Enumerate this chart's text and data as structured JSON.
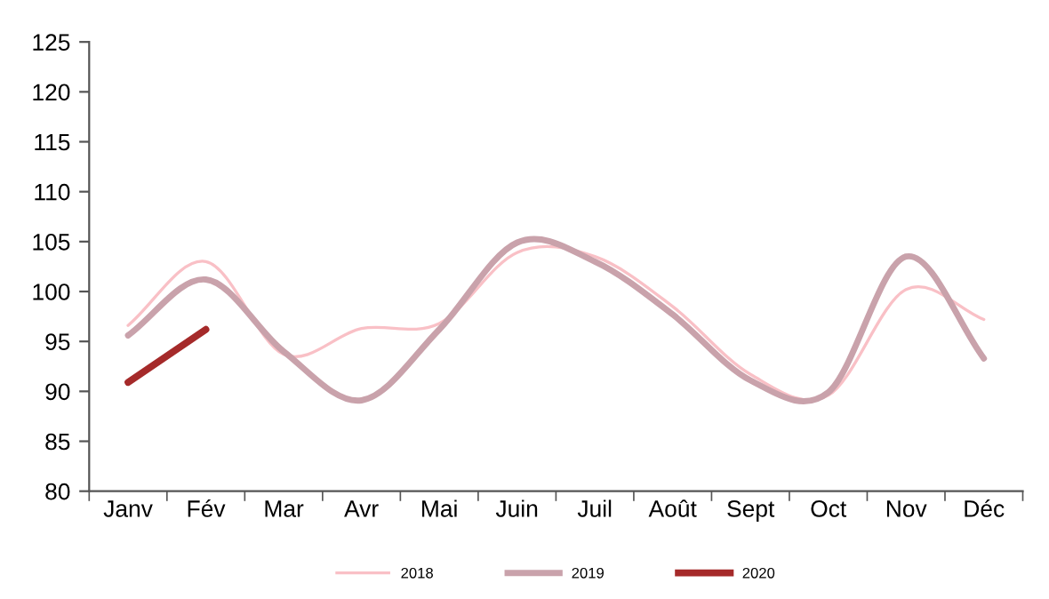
{
  "chart_data": {
    "type": "line",
    "categories": [
      "Janv",
      "Fév",
      "Mar",
      "Avr",
      "Mai",
      "Juin",
      "Juil",
      "Août",
      "Sept",
      "Oct",
      "Nov",
      "Déc"
    ],
    "series": [
      {
        "name": "2018",
        "color": "#f9c0c6",
        "values": [
          96.6,
          103.0,
          93.7,
          96.3,
          96.8,
          103.9,
          103.5,
          98.5,
          91.7,
          89.6,
          100.2,
          97.2
        ]
      },
      {
        "name": "2019",
        "color": "#c9a2ab",
        "values": [
          95.6,
          101.2,
          94.0,
          89.1,
          96.2,
          104.9,
          103.0,
          97.7,
          91.1,
          89.9,
          103.5,
          93.3
        ]
      },
      {
        "name": "2020",
        "color": "#a52a2a",
        "values": [
          90.9,
          96.2,
          null,
          null,
          null,
          null,
          null,
          null,
          null,
          null,
          null,
          null
        ]
      }
    ],
    "ylim": [
      80,
      125
    ],
    "yticks": [
      80,
      85,
      90,
      95,
      100,
      105,
      110,
      115,
      120,
      125
    ],
    "grid": false,
    "legend": "bottom",
    "marker": "none",
    "line_style": "solid"
  }
}
